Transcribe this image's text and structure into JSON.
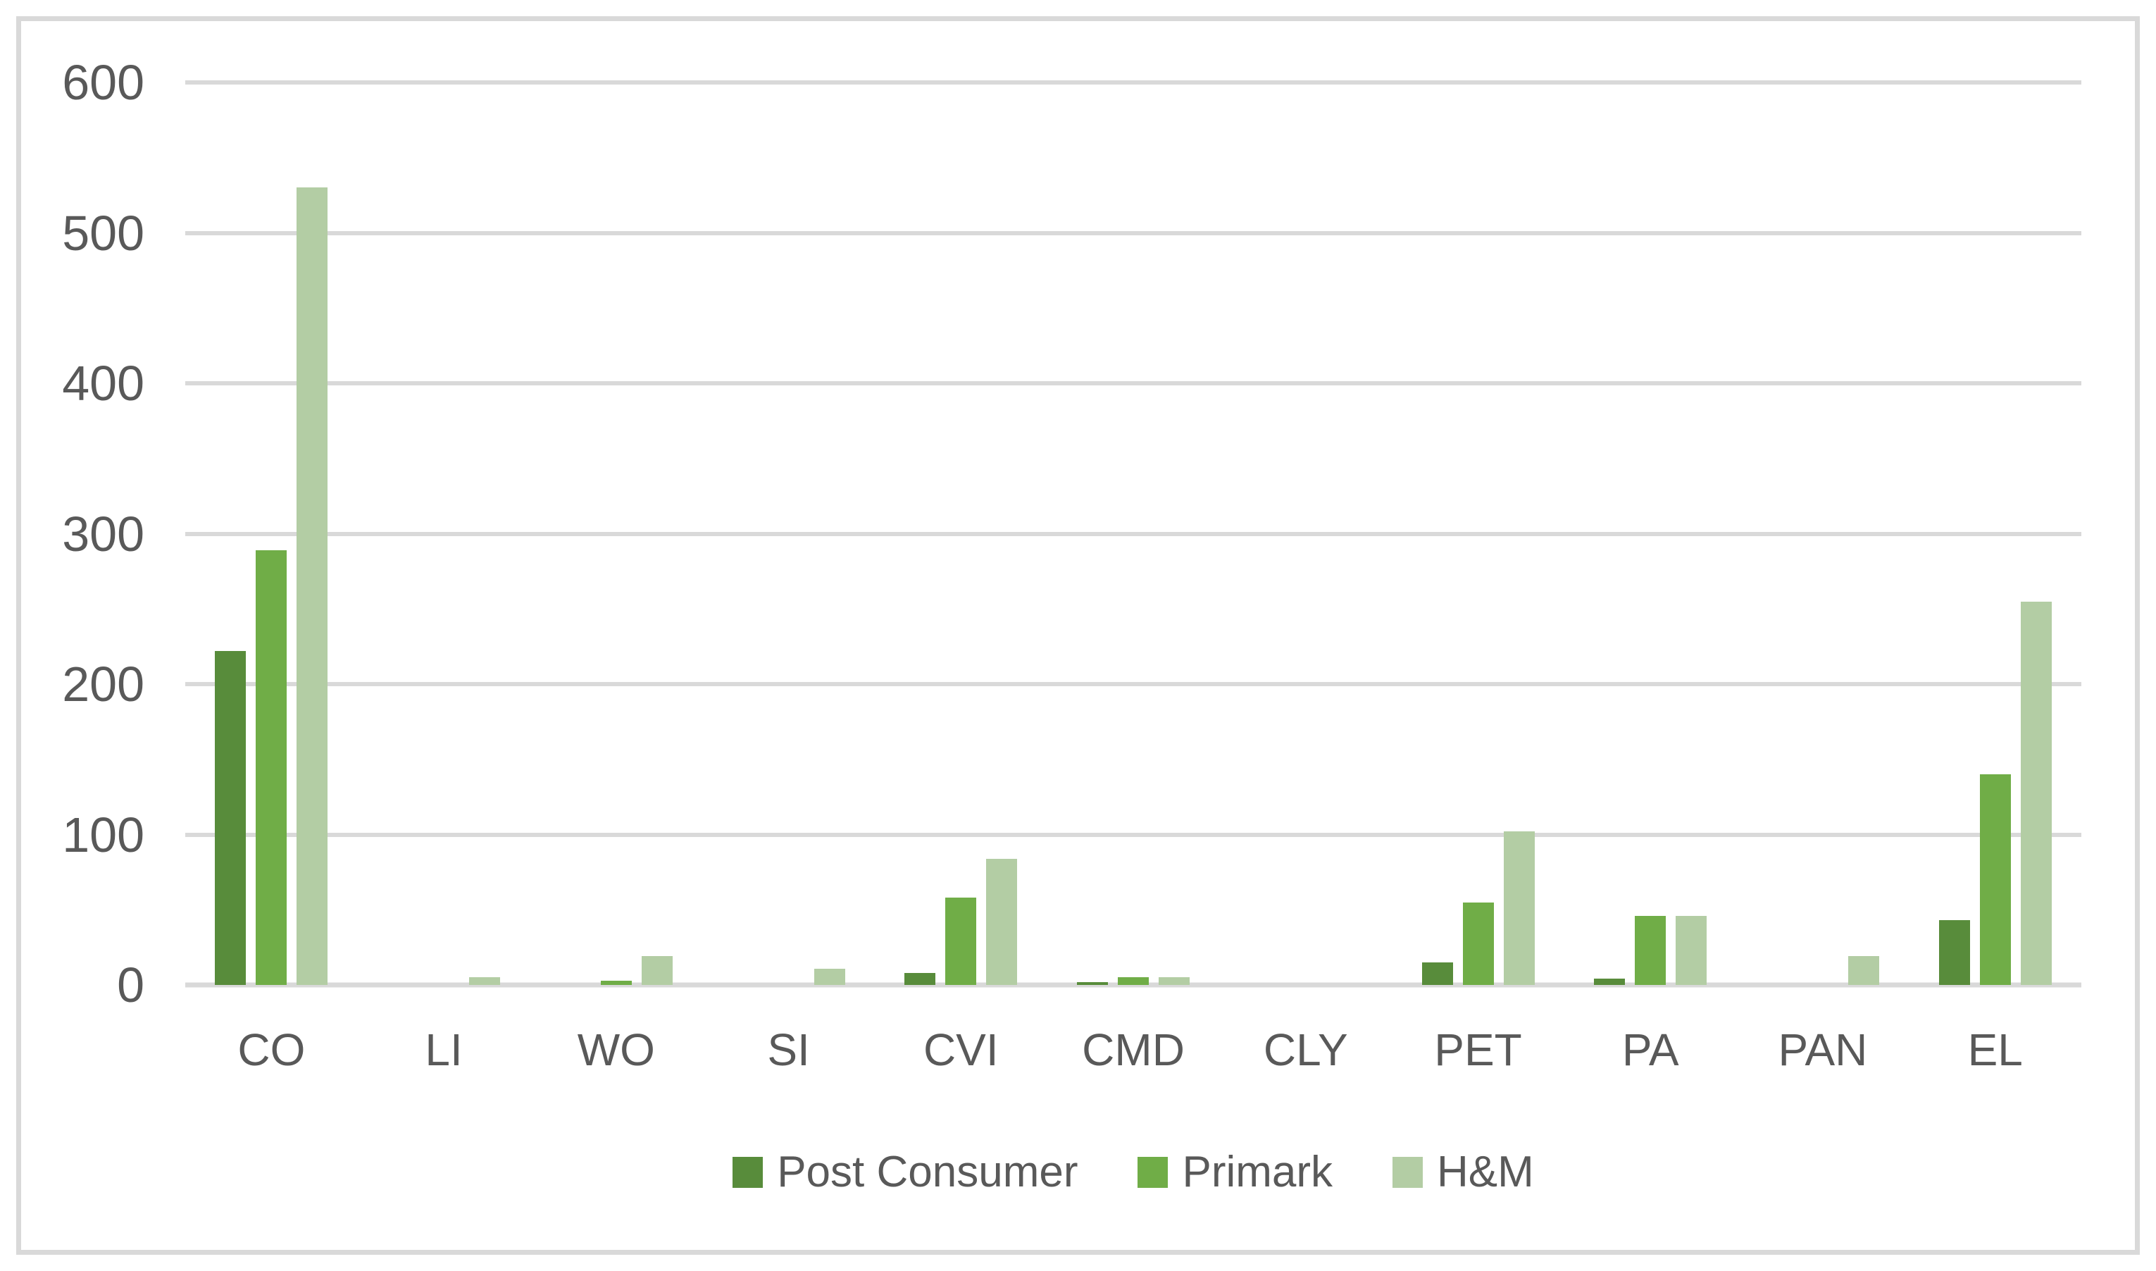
{
  "chart_data": {
    "type": "bar",
    "title": "",
    "xlabel": "",
    "ylabel": "",
    "categories": [
      "CO",
      "LI",
      "WO",
      "SI",
      "CVI",
      "CMD",
      "CLY",
      "PET",
      "PA",
      "PAN",
      "EL"
    ],
    "series": [
      {
        "name": "Post Consumer",
        "color": "#588C3B",
        "values": [
          222,
          0,
          0,
          0,
          8,
          2,
          0,
          15,
          4,
          0,
          43
        ]
      },
      {
        "name": "Primark",
        "color": "#70AD47",
        "values": [
          289,
          0,
          3,
          0,
          58,
          5,
          0,
          55,
          46,
          0,
          140
        ]
      },
      {
        "name": "H&M",
        "color": "#B3CDA4",
        "values": [
          530,
          5,
          19,
          11,
          84,
          5,
          0,
          102,
          46,
          19,
          255
        ]
      }
    ],
    "ylim": [
      0,
      600
    ],
    "ytick_step": 100,
    "ytick_labels": [
      "0",
      "100",
      "200",
      "300",
      "400",
      "500",
      "600"
    ],
    "grid": "horizontal",
    "legend_position": "bottom",
    "axis_text_color": "#595959",
    "gridline_color": "#D9D9D9",
    "frame_border_color": "#D9D9D9",
    "background_color": "#FFFFFF"
  }
}
